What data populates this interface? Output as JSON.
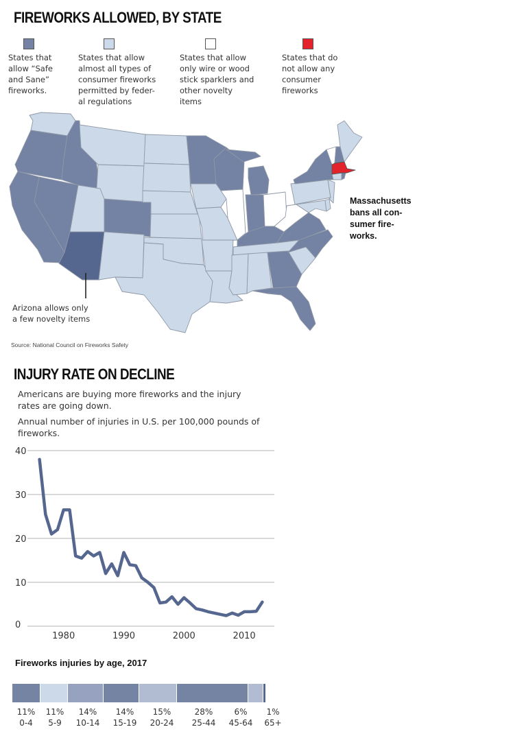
{
  "map": {
    "title": "FIREWORKS ALLOWED, BY STATE",
    "legend": [
      {
        "color": "#7482a3",
        "text_lines": [
          "States that",
          "allow “Safe",
          "and Sane”",
          "fireworks."
        ]
      },
      {
        "color": "#ccd9e8",
        "text_lines": [
          "States that allow",
          "almost all types of",
          "consumer fireworks",
          "permitted by feder-",
          "al regulations"
        ]
      },
      {
        "color": "#ffffff",
        "text_lines": [
          "States that allow",
          "only wire or wood",
          "stick sparklers and",
          "other novelty",
          "items"
        ]
      },
      {
        "color": "#e3232b",
        "text_lines": [
          "States that do",
          "not allow any",
          "consumer",
          "fireworks"
        ]
      }
    ],
    "arizona_note": [
      "Arizona allows only",
      "a few novelty items"
    ],
    "arizona_color": "#56678f",
    "massachusetts_note": [
      "Massachusetts",
      "bans all con-",
      "sumer fire-",
      "works."
    ],
    "source": "Source: National Council on Fireworks Safety"
  },
  "injury": {
    "title": "INJURY RATE ON DECLINE",
    "subtitle": "Americans are buying more fireworks and the injury rates are going down.",
    "description": "Annual number of injuries in U.S. per 100,000 pounds of fireworks."
  },
  "chart_data": [
    {
      "type": "line",
      "title": "INJURY RATE ON DECLINE",
      "xlabel": "",
      "ylabel": "",
      "xlim": [
        1974,
        2015
      ],
      "ylim": [
        0,
        40
      ],
      "x_ticks": [
        1980,
        1990,
        2000,
        2010
      ],
      "y_ticks": [
        0,
        10,
        20,
        30,
        40
      ],
      "grid": "horizontal",
      "line_color": "#56678f",
      "series": [
        {
          "x": [
            1976,
            1977,
            1978,
            1979,
            1980,
            1981,
            1982,
            1983,
            1984,
            1985,
            1986,
            1987,
            1988,
            1989,
            1990,
            1991,
            1992,
            1993,
            1994,
            1995,
            1996,
            1997,
            1998,
            1999,
            2000,
            2001,
            2002,
            2003,
            2004,
            2005,
            2006,
            2007,
            2008,
            2009,
            2010,
            2011,
            2012,
            2013
          ],
          "values": [
            38,
            25.5,
            21,
            22,
            26.5,
            26.5,
            16,
            15.5,
            17,
            16,
            16.8,
            12,
            14.2,
            11.5,
            16.8,
            14,
            13.8,
            11,
            10,
            8.8,
            5.3,
            5.5,
            6.7,
            5,
            6.5,
            5.3,
            4,
            3.7,
            3.3,
            3,
            2.7,
            2.4,
            3,
            2.5,
            3.3,
            3.3,
            3.4,
            5.5
          ]
        }
      ]
    },
    {
      "type": "bar",
      "title": "Fireworks injuries by age, 2017",
      "orientation": "stacked-horizontal",
      "categories": [
        "0-4",
        "5-9",
        "10-14",
        "15-19",
        "20-24",
        "25-44",
        "45-64",
        "65+"
      ],
      "values": [
        11,
        11,
        14,
        14,
        15,
        28,
        6,
        1
      ],
      "value_labels": [
        "11%",
        "11%",
        "14%",
        "14%",
        "15%",
        "28%",
        "6%",
        "1%"
      ],
      "colors": [
        "#7684a4",
        "#ccd9e8",
        "#96a2bf",
        "#7684a4",
        "#b1bcd2",
        "#7684a4",
        "#b1bcd2",
        "#56678f"
      ]
    }
  ]
}
